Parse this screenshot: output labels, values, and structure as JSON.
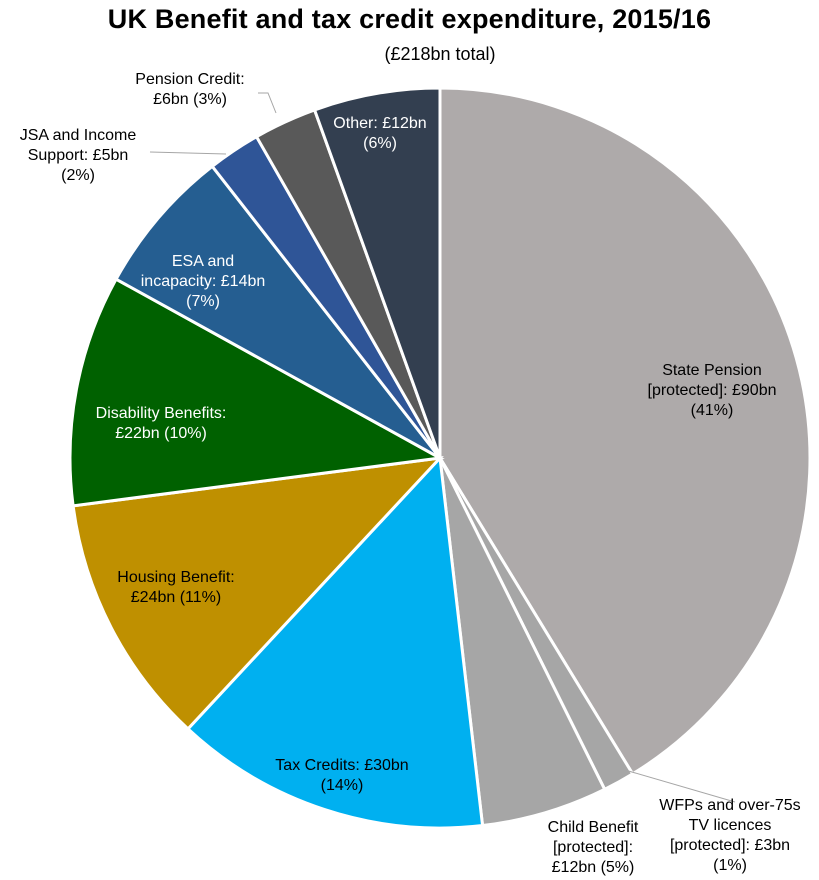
{
  "chart_data": {
    "type": "pie",
    "title": "UK Benefit and tax credit expenditure, 2015/16",
    "subtitle": "(£218bn total)",
    "slices": [
      {
        "name": "State Pension [protected]",
        "value": 90,
        "percent": 41,
        "color": "#aeaaaa",
        "text_color": "#000000",
        "label_lines": [
          "State Pension",
          "[protected]: £90bn",
          "(41%)"
        ]
      },
      {
        "name": "WFPs and over-75s TV licences [protected]",
        "value": 3,
        "percent": 1,
        "color": "#a6a6a6",
        "text_color": "#000000",
        "label_lines": [
          "WFPs and over-75s",
          "TV licences",
          "[protected]: £3bn",
          "(1%)"
        ]
      },
      {
        "name": "Child Benefit [protected]",
        "value": 12,
        "percent": 5,
        "color": "#a6a6a6",
        "text_color": "#000000",
        "label_lines": [
          "Child Benefit",
          "[protected]:",
          "£12bn (5%)"
        ]
      },
      {
        "name": "Tax Credits",
        "value": 30,
        "percent": 14,
        "color": "#00b0f0",
        "text_color": "#000000",
        "label_lines": [
          "Tax Credits: £30bn",
          "(14%)"
        ]
      },
      {
        "name": "Housing Benefit",
        "value": 24,
        "percent": 11,
        "color": "#bf9000",
        "text_color": "#000000",
        "label_lines": [
          "Housing Benefit:",
          "£24bn (11%)"
        ]
      },
      {
        "name": "Disability Benefits",
        "value": 22,
        "percent": 10,
        "color": "#006100",
        "text_color": "#ffffff",
        "label_lines": [
          "Disability Benefits:",
          "£22bn (10%)"
        ]
      },
      {
        "name": "ESA and incapacity",
        "value": 14,
        "percent": 7,
        "color": "#255e91",
        "text_color": "#ffffff",
        "label_lines": [
          "ESA and",
          "incapacity: £14bn",
          "(7%)"
        ]
      },
      {
        "name": "JSA and Income Support",
        "value": 5,
        "percent": 2,
        "color": "#2f5597",
        "text_color": "#000000",
        "label_lines": [
          "JSA and Income",
          "Support: £5bn",
          "(2%)"
        ]
      },
      {
        "name": "Pension Credit",
        "value": 6,
        "percent": 3,
        "color": "#595959",
        "text_color": "#000000",
        "label_lines": [
          "Pension Credit:",
          "£6bn (3%)"
        ]
      },
      {
        "name": "Other",
        "value": 12,
        "percent": 6,
        "color": "#333f50",
        "text_color": "#ffffff",
        "label_lines": [
          "Other: £12bn",
          "(6%)"
        ]
      }
    ],
    "start_angle": "12 o'clock, clockwise",
    "legend": "none (labels on/beside slices)"
  }
}
